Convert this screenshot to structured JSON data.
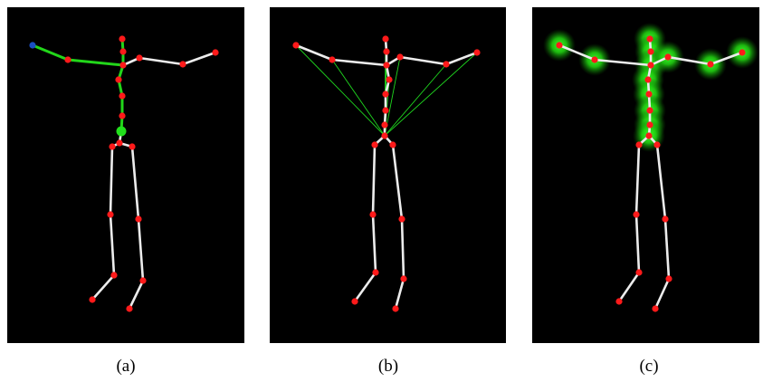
{
  "figure": {
    "panels": [
      {
        "id": "a",
        "caption": "(a)",
        "mode": "chain",
        "joints": [
          [
            135,
            43
          ],
          [
            136,
            57
          ],
          [
            136,
            72
          ],
          [
            131,
            88
          ],
          [
            135,
            106
          ],
          [
            135,
            128
          ],
          [
            134,
            145
          ],
          [
            132,
            158
          ],
          [
            124,
            162
          ],
          [
            146,
            162
          ],
          [
            122,
            237
          ],
          [
            153,
            242
          ],
          [
            126,
            304
          ],
          [
            158,
            310
          ],
          [
            102,
            331
          ],
          [
            143,
            341
          ],
          [
            75,
            66
          ],
          [
            154,
            64
          ],
          [
            202,
            71
          ],
          [
            238,
            58
          ],
          [
            36,
            50
          ]
        ],
        "bones": [
          [
            0,
            1
          ],
          [
            1,
            2
          ],
          [
            2,
            3
          ],
          [
            3,
            4
          ],
          [
            4,
            5
          ],
          [
            5,
            6
          ],
          [
            6,
            7
          ],
          [
            7,
            8
          ],
          [
            7,
            9
          ],
          [
            8,
            10
          ],
          [
            10,
            12
          ],
          [
            12,
            14
          ],
          [
            9,
            11
          ],
          [
            11,
            13
          ],
          [
            13,
            15
          ],
          [
            2,
            16
          ],
          [
            16,
            20
          ],
          [
            2,
            17
          ],
          [
            17,
            18
          ],
          [
            18,
            19
          ]
        ],
        "highlight_bones": [
          [
            0,
            1
          ],
          [
            1,
            2
          ],
          [
            2,
            3
          ],
          [
            3,
            4
          ],
          [
            4,
            5
          ],
          [
            5,
            6
          ],
          [
            2,
            16
          ],
          [
            16,
            20
          ]
        ],
        "big_joint": 6,
        "blue_joint": 20
      },
      {
        "id": "b",
        "caption": "(b)",
        "mode": "fan",
        "joints": [
          [
            426,
            43
          ],
          [
            427,
            57
          ],
          [
            427,
            72
          ],
          [
            430,
            88
          ],
          [
            426,
            104
          ],
          [
            426,
            122
          ],
          [
            425,
            138
          ],
          [
            425,
            150
          ],
          [
            414,
            160
          ],
          [
            434,
            160
          ],
          [
            412,
            237
          ],
          [
            444,
            242
          ],
          [
            415,
            301
          ],
          [
            446,
            308
          ],
          [
            392,
            333
          ],
          [
            437,
            341
          ],
          [
            367,
            66
          ],
          [
            442,
            63
          ],
          [
            493,
            71
          ],
          [
            527,
            58
          ],
          [
            327,
            50
          ]
        ],
        "bones": [
          [
            0,
            1
          ],
          [
            1,
            2
          ],
          [
            2,
            3
          ],
          [
            3,
            4
          ],
          [
            4,
            5
          ],
          [
            5,
            6
          ],
          [
            6,
            7
          ],
          [
            7,
            8
          ],
          [
            7,
            9
          ],
          [
            8,
            10
          ],
          [
            10,
            12
          ],
          [
            12,
            14
          ],
          [
            9,
            11
          ],
          [
            11,
            13
          ],
          [
            13,
            15
          ],
          [
            2,
            16
          ],
          [
            16,
            20
          ],
          [
            2,
            17
          ],
          [
            17,
            18
          ],
          [
            18,
            19
          ]
        ],
        "fan_center": [
          425,
          150
        ],
        "fan_targets": [
          0,
          1,
          2,
          3,
          16,
          20,
          17,
          18,
          19
        ]
      },
      {
        "id": "c",
        "caption": "(c)",
        "mode": "glow",
        "joints": [
          [
            718,
            43
          ],
          [
            719,
            57
          ],
          [
            719,
            72
          ],
          [
            716,
            88
          ],
          [
            717,
            104
          ],
          [
            718,
            122
          ],
          [
            718,
            138
          ],
          [
            717,
            150
          ],
          [
            706,
            160
          ],
          [
            726,
            160
          ],
          [
            703,
            237
          ],
          [
            735,
            242
          ],
          [
            706,
            301
          ],
          [
            739,
            308
          ],
          [
            684,
            333
          ],
          [
            724,
            341
          ],
          [
            657,
            66
          ],
          [
            738,
            63
          ],
          [
            785,
            71
          ],
          [
            820,
            58
          ],
          [
            618,
            50
          ]
        ],
        "bones": [
          [
            0,
            1
          ],
          [
            1,
            2
          ],
          [
            2,
            3
          ],
          [
            3,
            4
          ],
          [
            4,
            5
          ],
          [
            5,
            6
          ],
          [
            6,
            7
          ],
          [
            7,
            8
          ],
          [
            7,
            9
          ],
          [
            8,
            10
          ],
          [
            10,
            12
          ],
          [
            12,
            14
          ],
          [
            9,
            11
          ],
          [
            11,
            13
          ],
          [
            13,
            15
          ],
          [
            2,
            16
          ],
          [
            16,
            20
          ],
          [
            2,
            17
          ],
          [
            17,
            18
          ],
          [
            18,
            19
          ]
        ],
        "glow_joints": [
          0,
          1,
          2,
          3,
          4,
          5,
          6,
          7,
          16,
          17,
          18,
          19,
          20
        ]
      }
    ]
  }
}
